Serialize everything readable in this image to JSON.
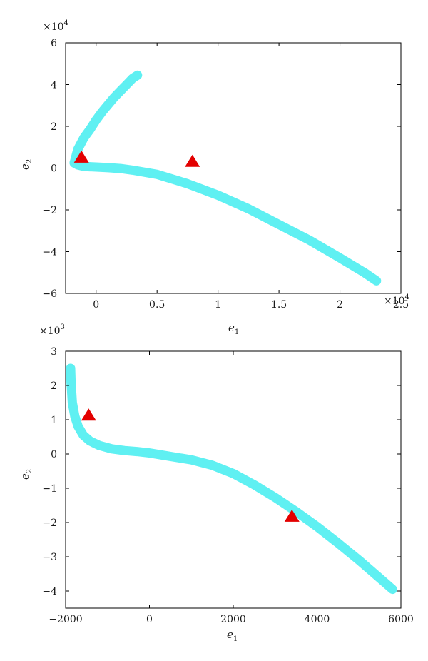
{
  "chart_data": [
    {
      "type": "scatter",
      "xlabel": "e",
      "xlabel_sub": "1",
      "ylabel": "e",
      "ylabel_sub": "2",
      "x_exponent_label": "×10",
      "x_exponent_power": "4",
      "y_exponent_label": "×10",
      "y_exponent_power": "4",
      "xlim": [
        -0.25,
        2.5
      ],
      "ylim": [
        -6,
        6
      ],
      "xticks": [
        0,
        0.5,
        1,
        1.5,
        2,
        2.5
      ],
      "xtick_labels": [
        "0",
        "0.5",
        "1",
        "1.5",
        "2",
        "2.5"
      ],
      "yticks": [
        -6,
        -4,
        -2,
        0,
        2,
        4,
        6
      ],
      "ytick_labels": [
        "−6",
        "−4",
        "−2",
        "0",
        "2",
        "4",
        "6"
      ],
      "grid": false,
      "series": [
        {
          "marker": "thick-line",
          "color": "#5ff0f2",
          "branches": [
            {
              "x": [
                -0.18,
                -0.15,
                -0.1,
                -0.05,
                0.0,
                0.05,
                0.1,
                0.15,
                0.2,
                0.25,
                0.3,
                0.34
              ],
              "y": [
                0.25,
                0.9,
                1.45,
                1.85,
                2.3,
                2.7,
                3.05,
                3.4,
                3.7,
                4.0,
                4.3,
                4.45
              ]
            },
            {
              "x": [
                -0.18,
                -0.15,
                -0.1,
                0.0,
                0.1,
                0.2,
                0.3,
                0.5,
                0.75,
                1.0,
                1.25,
                1.5,
                1.75,
                2.0,
                2.2,
                2.3
              ],
              "y": [
                0.25,
                0.15,
                0.08,
                0.05,
                0.02,
                -0.02,
                -0.1,
                -0.3,
                -0.75,
                -1.3,
                -1.95,
                -2.7,
                -3.45,
                -4.3,
                -5.0,
                -5.4
              ]
            }
          ]
        },
        {
          "marker": "triangle",
          "color": "#e30000",
          "x": [
            -0.12,
            0.79
          ],
          "y": [
            0.55,
            0.35
          ]
        }
      ]
    },
    {
      "type": "scatter",
      "xlabel": "e",
      "xlabel_sub": "1",
      "ylabel": "e",
      "ylabel_sub": "2",
      "y_exponent_label": "×10",
      "y_exponent_power": "3",
      "xlim": [
        -2000,
        6000
      ],
      "ylim": [
        -4.5,
        3
      ],
      "xticks": [
        -2000,
        0,
        2000,
        4000,
        6000
      ],
      "xtick_labels": [
        "−2000",
        "0",
        "2000",
        "4000",
        "6000"
      ],
      "yticks": [
        -4,
        -3,
        -2,
        -1,
        0,
        1,
        2,
        3
      ],
      "ytick_labels": [
        "−4",
        "−3",
        "−2",
        "−1",
        "0",
        "1",
        "2",
        "3"
      ],
      "grid": false,
      "series": [
        {
          "marker": "thick-line",
          "color": "#5ff0f2",
          "branches": [
            {
              "x": [
                -1880,
                -1870,
                -1840,
                -1780,
                -1700,
                -1580,
                -1420,
                -1200,
                -900,
                -600,
                -300,
                0,
                500,
                1000,
                1500,
                2000,
                2500,
                3000,
                3500,
                4000,
                4500,
                5000,
                5500,
                5800
              ],
              "y": [
                2.5,
                2.1,
                1.5,
                1.1,
                0.8,
                0.55,
                0.38,
                0.25,
                0.15,
                0.1,
                0.07,
                0.03,
                -0.07,
                -0.17,
                -0.33,
                -0.57,
                -0.9,
                -1.27,
                -1.68,
                -2.12,
                -2.6,
                -3.1,
                -3.63,
                -3.95
              ]
            }
          ]
        },
        {
          "marker": "triangle",
          "color": "#e30000",
          "x": [
            -1450,
            3400
          ],
          "y": [
            1.15,
            -1.8
          ]
        }
      ]
    }
  ]
}
